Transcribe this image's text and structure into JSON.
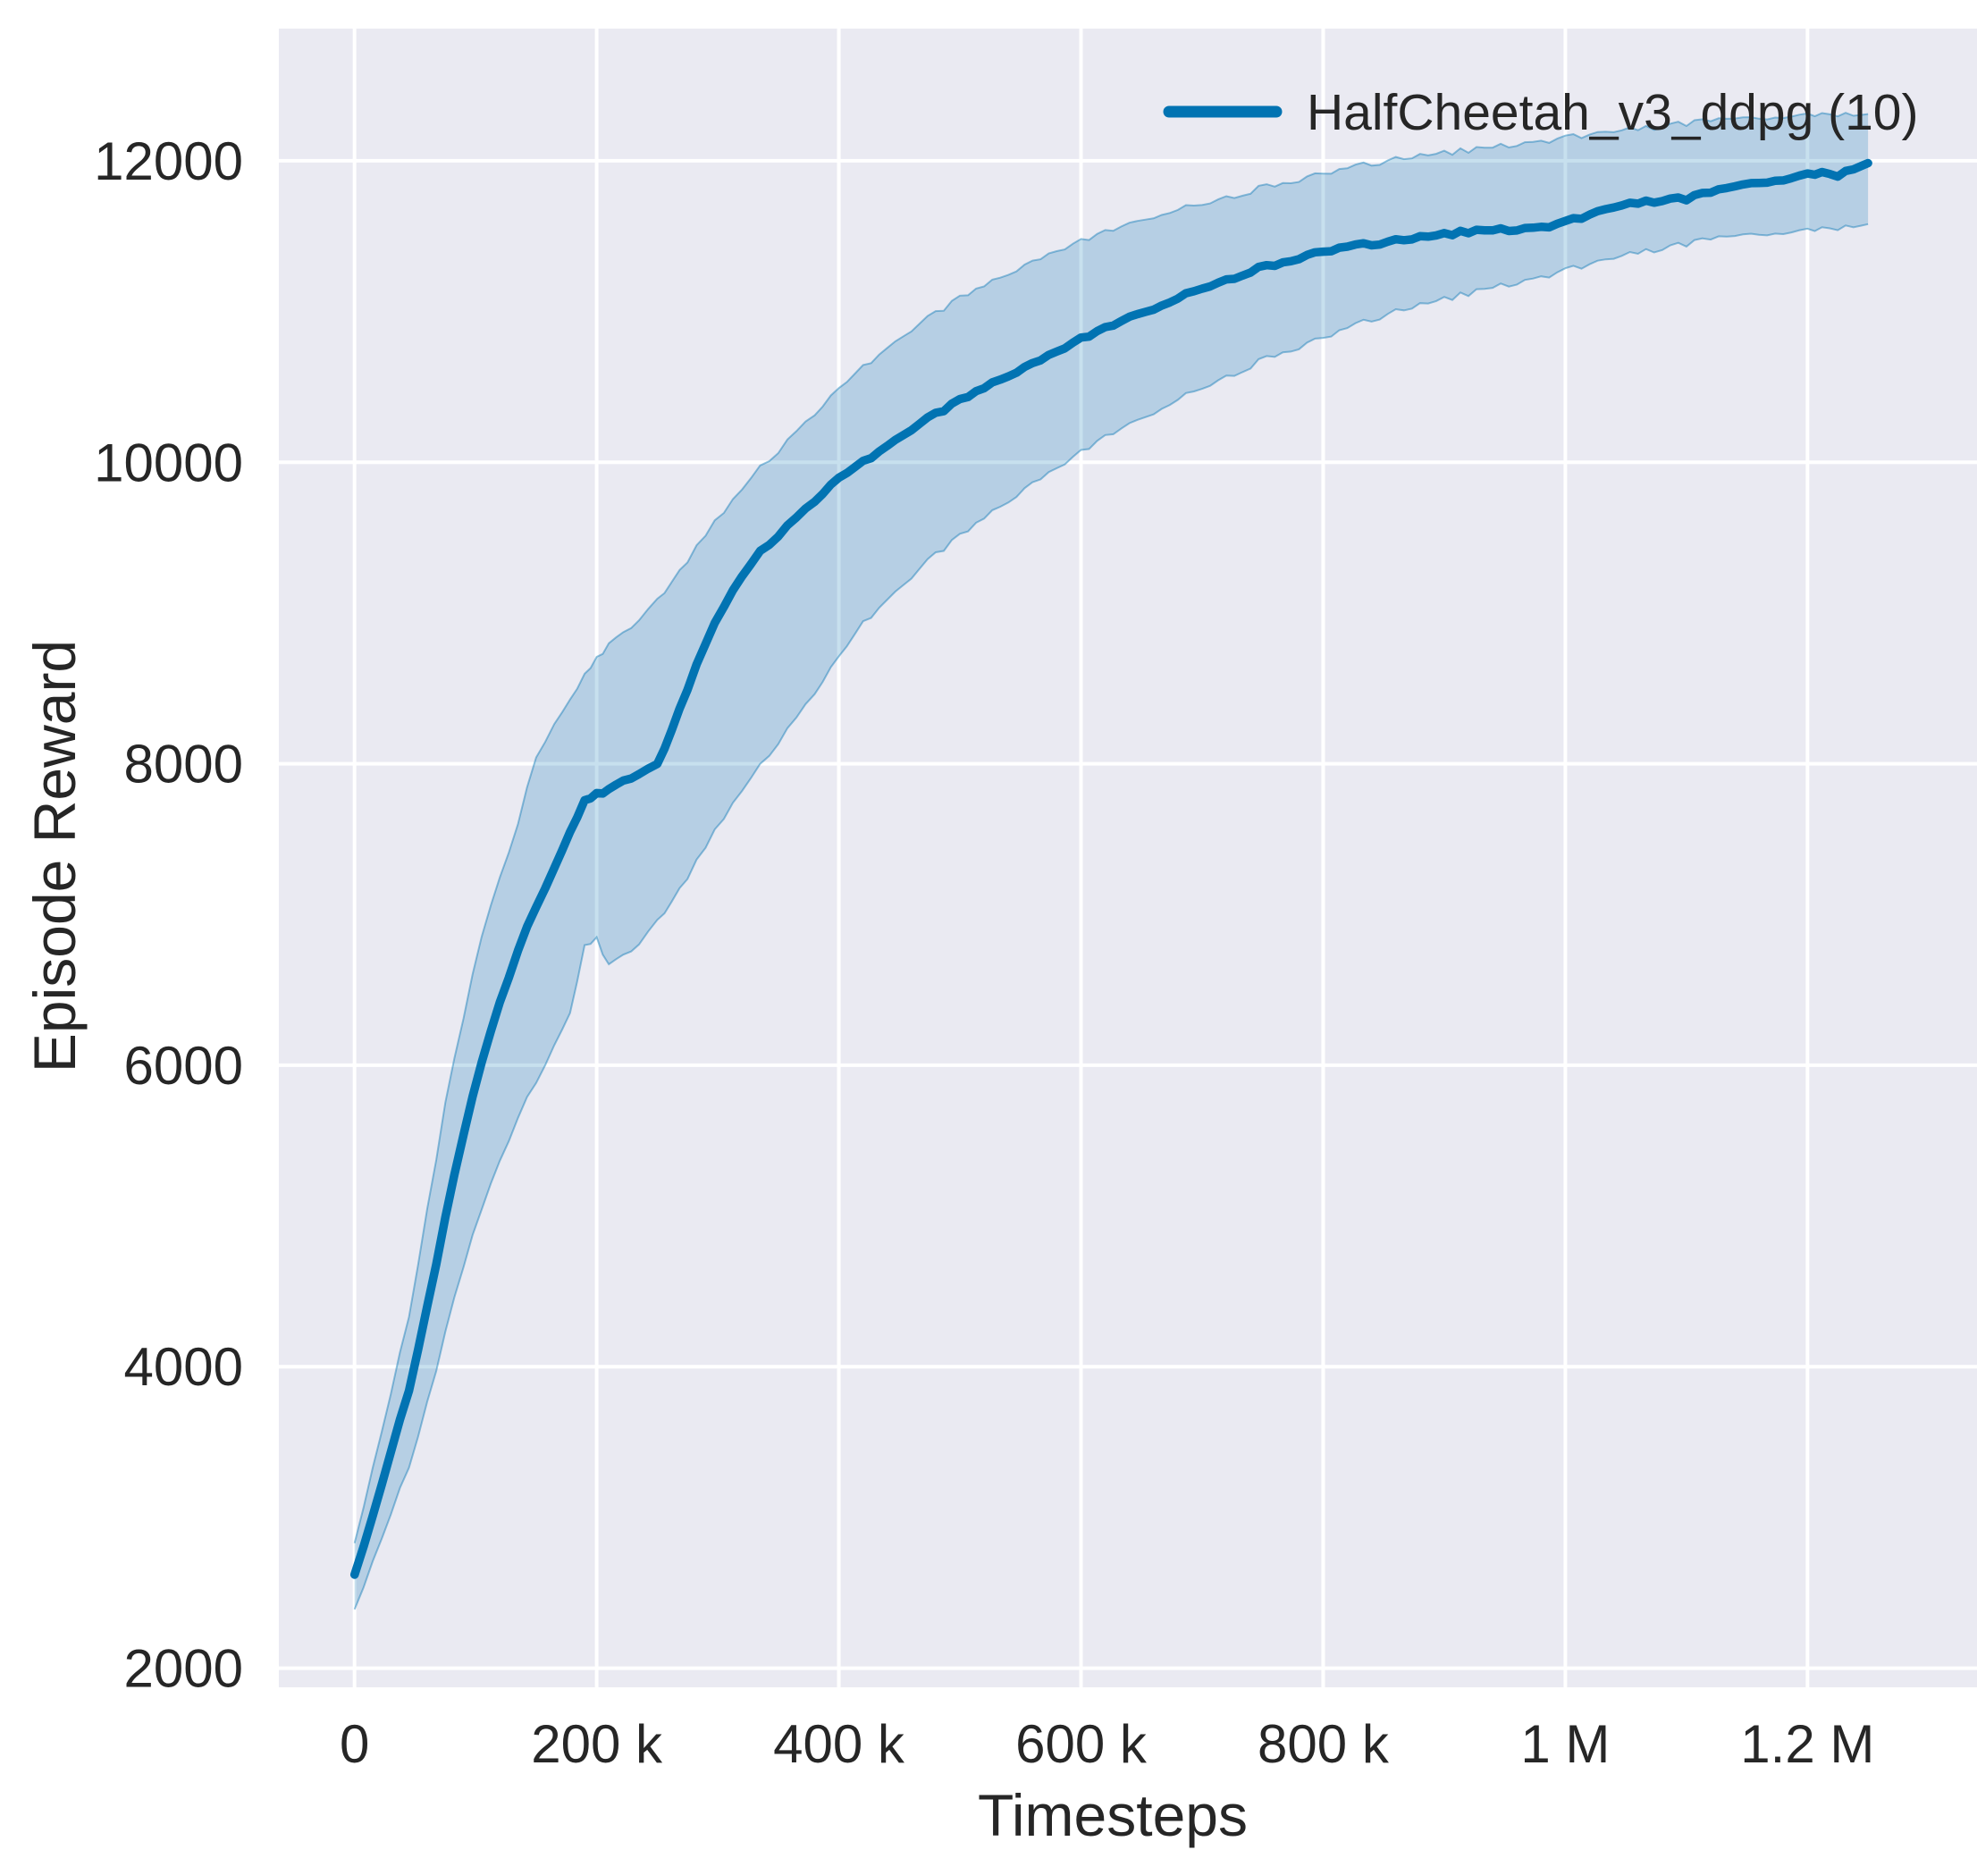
{
  "figure": {
    "background": "#ffffff",
    "axes_background": "#eaeaf2",
    "grid_color": "#ffffff",
    "text_color": "#262626"
  },
  "chart_data": {
    "type": "line",
    "title": "",
    "xlabel": "Timesteps",
    "ylabel": "Episode Reward",
    "grid": true,
    "legend_position": "upper right",
    "legend": [
      {
        "label": "HalfCheetah_v3_ddpg (10)",
        "color": "#0173b2"
      }
    ],
    "xlim": [
      -62500,
      1340000
    ],
    "ylim": [
      1873,
      12877
    ],
    "x_ticks": [
      {
        "value": 0,
        "label": "0"
      },
      {
        "value": 200000,
        "label": "200 k"
      },
      {
        "value": 400000,
        "label": "400 k"
      },
      {
        "value": 600000,
        "label": "600 k"
      },
      {
        "value": 800000,
        "label": "800 k"
      },
      {
        "value": 1000000,
        "label": "1 M"
      },
      {
        "value": 1200000,
        "label": "1.2 M"
      }
    ],
    "y_ticks": [
      {
        "value": 2000,
        "label": "2000"
      },
      {
        "value": 4000,
        "label": "4000"
      },
      {
        "value": 6000,
        "label": "6000"
      },
      {
        "value": 8000,
        "label": "8000"
      },
      {
        "value": 10000,
        "label": "10000"
      },
      {
        "value": 12000,
        "label": "12000"
      }
    ],
    "series": [
      {
        "name": "HalfCheetah_v3_ddpg (10)",
        "color": "#0173b2",
        "band_alpha": 0.22,
        "x": [
          0,
          15000,
          30000,
          45000,
          60000,
          75000,
          90000,
          105000,
          120000,
          135000,
          150000,
          165000,
          178000,
          190000,
          200000,
          210000,
          222000,
          235000,
          250000,
          262000,
          275000,
          290000,
          305000,
          320000,
          335000,
          350000,
          365000,
          380000,
          400000,
          420000,
          440000,
          460000,
          480000,
          500000,
          520000,
          540000,
          560000,
          580000,
          600000,
          620000,
          640000,
          660000,
          680000,
          700000,
          720000,
          740000,
          760000,
          780000,
          800000,
          820000,
          840000,
          860000,
          880000,
          900000,
          920000,
          940000,
          960000,
          980000,
          1000000,
          1020000,
          1040000,
          1060000,
          1080000,
          1100000,
          1120000,
          1140000,
          1160000,
          1180000,
          1200000,
          1212000,
          1225000,
          1238000,
          1250000
        ],
        "mean": [
          2620,
          3010,
          3440,
          3840,
          4390,
          4990,
          5550,
          6030,
          6420,
          6760,
          7060,
          7300,
          7550,
          7760,
          7800,
          7820,
          7880,
          7930,
          7990,
          8220,
          8500,
          8800,
          9050,
          9250,
          9400,
          9520,
          9630,
          9750,
          9890,
          10000,
          10110,
          10220,
          10320,
          10410,
          10500,
          10580,
          10660,
          10740,
          10820,
          10890,
          10960,
          11020,
          11090,
          11160,
          11210,
          11270,
          11310,
          11360,
          11400,
          11430,
          11450,
          11470,
          11490,
          11510,
          11530,
          11540,
          11545,
          11560,
          11590,
          11640,
          11690,
          11720,
          11740,
          11750,
          11790,
          11830,
          11860,
          11880,
          11910,
          11920,
          11905,
          11950,
          11985
        ],
        "lower": [
          2390,
          2710,
          3030,
          3330,
          3750,
          4230,
          4680,
          5060,
          5370,
          5650,
          5900,
          6120,
          6350,
          6800,
          6840,
          6650,
          6720,
          6800,
          6950,
          7080,
          7250,
          7450,
          7650,
          7830,
          7980,
          8150,
          8300,
          8480,
          8700,
          8930,
          9090,
          9240,
          9390,
          9510,
          9640,
          9750,
          9870,
          9970,
          10070,
          10170,
          10250,
          10330,
          10420,
          10500,
          10570,
          10640,
          10710,
          10770,
          10830,
          10890,
          10950,
          11000,
          11040,
          11080,
          11120,
          11160,
          11190,
          11230,
          11270,
          11310,
          11350,
          11390,
          11420,
          11450,
          11480,
          11500,
          11520,
          11530,
          11540,
          11550,
          11555,
          11570,
          11580
        ],
        "upper": [
          2830,
          3330,
          3830,
          4330,
          5030,
          5750,
          6330,
          6870,
          7250,
          7600,
          8060,
          8250,
          8430,
          8600,
          8700,
          8780,
          8860,
          8950,
          9080,
          9200,
          9350,
          9520,
          9680,
          9830,
          9960,
          10080,
          10200,
          10330,
          10480,
          10630,
          10760,
          10880,
          10990,
          11090,
          11180,
          11260,
          11340,
          11410,
          11470,
          11530,
          11580,
          11630,
          11680,
          11720,
          11760,
          11800,
          11840,
          11880,
          11920,
          11950,
          11985,
          12010,
          12030,
          12050,
          12070,
          12090,
          12110,
          12130,
          12150,
          12170,
          12190,
          12210,
          12230,
          12250,
          12265,
          12280,
          12290,
          12300,
          12305,
          12308,
          12310,
          12310,
          12310
        ]
      }
    ]
  }
}
